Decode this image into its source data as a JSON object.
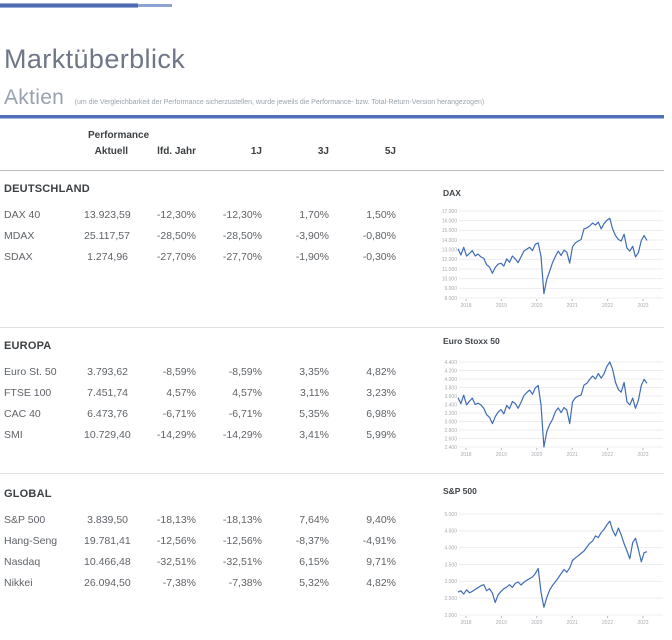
{
  "header": {
    "title": "Marktüberblick",
    "section_title": "Aktien",
    "section_note": "(um die Vergleichbarkeit der Performance sicherzustellen, wurde jeweils die Performance- bzw. Total-Return-Version herangezogen)"
  },
  "table": {
    "group_header": "Performance",
    "columns": [
      "Aktuell",
      "lfd. Jahr",
      "1J",
      "3J",
      "5J"
    ],
    "sections": [
      {
        "name": "DEUTSCHLAND",
        "rows": [
          {
            "label": "DAX 40",
            "values": [
              "13.923,59",
              "-12,30%",
              "-12,30%",
              "1,70%",
              "1,50%"
            ]
          },
          {
            "label": "MDAX",
            "values": [
              "25.117,57",
              "-28,50%",
              "-28,50%",
              "-3,90%",
              "-0,80%"
            ]
          },
          {
            "label": "SDAX",
            "values": [
              "1.274,96",
              "-27,70%",
              "-27,70%",
              "-1,90%",
              "-0,30%"
            ]
          }
        ]
      },
      {
        "name": "EUROPA",
        "rows": [
          {
            "label": "Euro St. 50",
            "values": [
              "3.793,62",
              "-8,59%",
              "-8,59%",
              "3,35%",
              "4,82%"
            ]
          },
          {
            "label": "FTSE 100",
            "values": [
              "7.451,74",
              "4,57%",
              "4,57%",
              "3,11%",
              "3,23%"
            ]
          },
          {
            "label": "CAC 40",
            "values": [
              "6.473,76",
              "-6,71%",
              "-6,71%",
              "5,35%",
              "6,98%"
            ]
          },
          {
            "label": "SMI",
            "values": [
              "10.729,40",
              "-14,29%",
              "-14,29%",
              "3,41%",
              "5,99%"
            ]
          }
        ]
      },
      {
        "name": "GLOBAL",
        "rows": [
          {
            "label": "S&P 500",
            "values": [
              "3.839,50",
              "-18,13%",
              "-18,13%",
              "7,64%",
              "9,40%"
            ]
          },
          {
            "label": "Hang-Seng",
            "values": [
              "19.781,41",
              "-12,56%",
              "-12,56%",
              "-8,37%",
              "-4,91%"
            ]
          },
          {
            "label": "Nasdaq",
            "values": [
              "10.466,48",
              "-32,51%",
              "-32,51%",
              "6,15%",
              "9,71%"
            ]
          },
          {
            "label": "Nikkei",
            "values": [
              "26.094,50",
              "-7,38%",
              "-7,38%",
              "5,32%",
              "4,82%"
            ]
          }
        ]
      }
    ]
  },
  "colors": {
    "accent_blue": "#4f6fba",
    "chart_line": "#3f6cb5",
    "heading_gray": "#6e7687",
    "text_dark": "#3c4043",
    "text_body": "#5f6368",
    "axis_label": "#a6abb1",
    "gridline": "#ededef"
  },
  "chart_data": [
    {
      "id": "dax",
      "type": "line",
      "title": "DAX",
      "x_tick_labels": [
        "2018",
        "2019",
        "2020",
        "2021",
        "2022",
        "2023"
      ],
      "y_tick_labels": [
        "17.000",
        "16.000",
        "15.000",
        "14.000",
        "13.000",
        "12.000",
        "11.000",
        "10.000",
        "9.000",
        "8.000"
      ],
      "ylim": [
        8000,
        17000
      ],
      "x_range": "Jan 2018 - Jan 2023",
      "grid": true,
      "legend": false,
      "values": [
        13100,
        12450,
        13250,
        12350,
        12600,
        12900,
        12350,
        12550,
        12250,
        12100,
        11450,
        11200,
        10550,
        11150,
        11500,
        11600,
        11300,
        12050,
        11700,
        12350,
        12050,
        11650,
        12250,
        12850,
        13050,
        13250,
        12900,
        13550,
        13700,
        12300,
        8450,
        9950,
        10750,
        11650,
        12300,
        12850,
        12400,
        12950,
        12750,
        11600,
        13300,
        13700,
        13900,
        14050,
        15150,
        15250,
        15450,
        15750,
        15550,
        15850,
        15150,
        15700,
        16050,
        16250,
        15150,
        14450,
        14050,
        13900,
        14600,
        13150,
        12850,
        13350,
        12250,
        12700,
        13950,
        14450,
        13950
      ]
    },
    {
      "id": "eurostoxx50",
      "type": "line",
      "title": "Euro Stoxx 50",
      "x_tick_labels": [
        "2018",
        "2019",
        "2020",
        "2021",
        "2022",
        "2023"
      ],
      "y_tick_labels": [
        "4.400",
        "4.200",
        "4.000",
        "3.800",
        "3.600",
        "3.400",
        "3.200",
        "3.000",
        "2.800",
        "2.600",
        "2.400"
      ],
      "ylim": [
        2400,
        4400
      ],
      "x_range": "Jan 2018 - Jan 2023",
      "grid": true,
      "legend": false,
      "values": [
        3560,
        3420,
        3620,
        3390,
        3480,
        3550,
        3400,
        3430,
        3390,
        3310,
        3160,
        3100,
        2950,
        3110,
        3220,
        3280,
        3180,
        3380,
        3300,
        3470,
        3420,
        3310,
        3450,
        3610,
        3680,
        3740,
        3640,
        3790,
        3850,
        3390,
        2400,
        2760,
        2930,
        3050,
        3230,
        3320,
        3210,
        3330,
        3270,
        2950,
        3460,
        3560,
        3600,
        3620,
        3860,
        3900,
        3990,
        4070,
        4000,
        4130,
        4020,
        4120,
        4300,
        4400,
        4230,
        3920,
        3750,
        3690,
        3920,
        3460,
        3390,
        3550,
        3310,
        3500,
        3850,
        3990,
        3900
      ]
    },
    {
      "id": "sp500",
      "type": "line",
      "title": "S&P 500",
      "x_tick_labels": [
        "2018",
        "2019",
        "2020",
        "2021",
        "2022",
        "2023"
      ],
      "y_tick_labels": [
        "5.000",
        "4.500",
        "4.000",
        "3.500",
        "3.000",
        "2.500",
        "2.000"
      ],
      "ylim": [
        2000,
        5000
      ],
      "x_range": "Jan 2018 - Jan 2023",
      "grid": true,
      "legend": false,
      "values": [
        2680,
        2720,
        2620,
        2750,
        2660,
        2700,
        2760,
        2810,
        2870,
        2900,
        2720,
        2780,
        2650,
        2370,
        2600,
        2700,
        2780,
        2830,
        2900,
        2820,
        2940,
        2980,
        2890,
        2970,
        3030,
        3080,
        3130,
        3230,
        3380,
        2680,
        2230,
        2520,
        2740,
        2880,
        2990,
        3100,
        3230,
        3350,
        3270,
        3400,
        3620,
        3700,
        3760,
        3830,
        3900,
        4020,
        4130,
        4200,
        4350,
        4300,
        4450,
        4540,
        4680,
        4790,
        4520,
        4350,
        4580,
        4380,
        4120,
        3900,
        3670,
        4150,
        4280,
        3950,
        3580,
        3850,
        3880
      ]
    }
  ]
}
